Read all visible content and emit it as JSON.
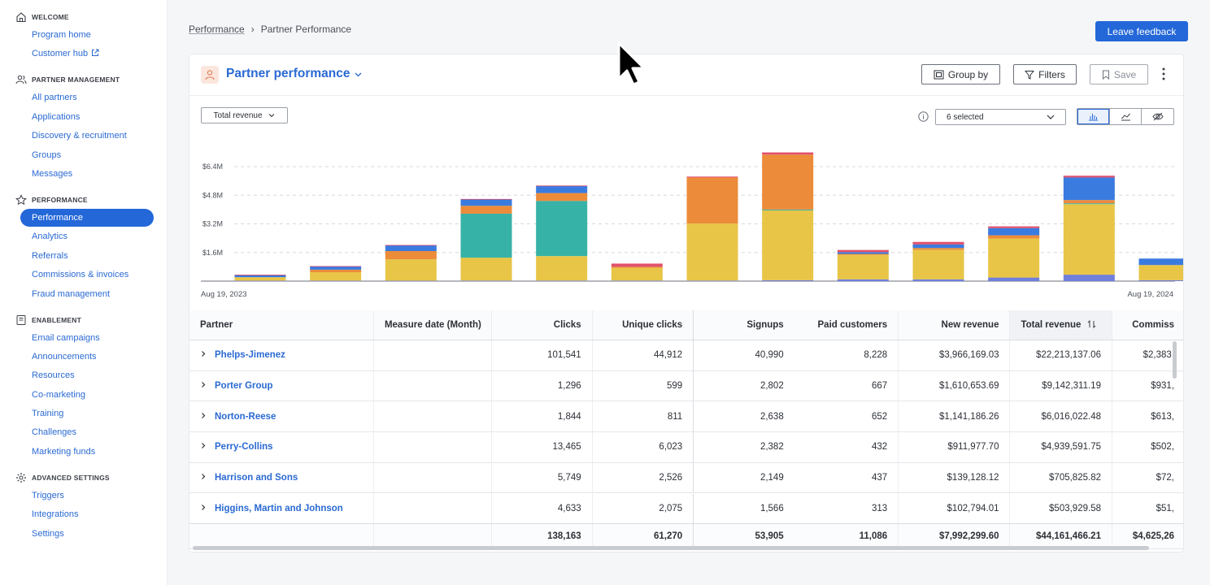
{
  "sidebar": {
    "sections": [
      {
        "title": "WELCOME",
        "icon": "home-icon",
        "items": [
          "Program home",
          "Customer hub"
        ]
      },
      {
        "title": "PARTNER MANAGEMENT",
        "icon": "users-icon",
        "items": [
          "All partners",
          "Applications",
          "Discovery & recruitment",
          "Groups",
          "Messages"
        ]
      },
      {
        "title": "PERFORMANCE",
        "icon": "star-icon",
        "items": [
          "Performance",
          "Analytics",
          "Referrals",
          "Commissions & invoices",
          "Fraud management"
        ]
      },
      {
        "title": "ENABLEMENT",
        "icon": "book-icon",
        "items": [
          "Email campaigns",
          "Announcements",
          "Resources",
          "Co-marketing",
          "Training",
          "Challenges",
          "Marketing funds"
        ]
      },
      {
        "title": "ADVANCED SETTINGS",
        "icon": "gear-icon",
        "items": [
          "Triggers",
          "Integrations",
          "Settings"
        ]
      }
    ],
    "active_item": "Performance"
  },
  "breadcrumb": {
    "root": "Performance",
    "separator": "›",
    "current": "Partner Performance"
  },
  "feedback_button": "Leave feedback",
  "report": {
    "title": "Partner performance",
    "group_by": "Group by",
    "filters": "Filters",
    "save": "Save"
  },
  "chart_controls": {
    "metric": "Total revenue",
    "series_selected": "6 selected"
  },
  "chart_data": {
    "type": "bar",
    "stacked": true,
    "y_ticks": [
      "$1.6M",
      "$3.2M",
      "$4.8M",
      "$6.4M"
    ],
    "y_tick_values": [
      1.6,
      3.2,
      4.8,
      6.4
    ],
    "ylim": [
      0,
      7.1
    ],
    "x_start_label": "Aug 19, 2023",
    "x_end_label": "Aug 19, 2024",
    "colors": [
      "#6f7fdc",
      "#e8c547",
      "#37b2a6",
      "#ec8b3a",
      "#3a7be0",
      "#e0516c"
    ],
    "bars": [
      [
        0.02,
        0.2,
        0.0,
        0.0,
        0.12,
        0.02
      ],
      [
        0.02,
        0.48,
        0.0,
        0.14,
        0.18,
        0.02
      ],
      [
        0.02,
        1.2,
        0.0,
        0.46,
        0.32,
        0.02
      ],
      [
        0.03,
        1.28,
        2.46,
        0.44,
        0.36,
        0.02
      ],
      [
        0.03,
        1.37,
        3.08,
        0.44,
        0.4,
        0.02
      ],
      [
        0.03,
        0.72,
        0.0,
        0.05,
        0.0,
        0.18
      ],
      [
        0.03,
        3.19,
        0.0,
        2.57,
        0.0,
        0.05
      ],
      [
        0.05,
        3.9,
        0.05,
        3.07,
        0.0,
        0.12
      ],
      [
        0.1,
        1.37,
        0.0,
        0.05,
        0.1,
        0.12
      ],
      [
        0.1,
        1.65,
        0.0,
        0.1,
        0.2,
        0.14
      ],
      [
        0.2,
        2.18,
        0.0,
        0.18,
        0.4,
        0.1
      ],
      [
        0.36,
        3.94,
        0.05,
        0.18,
        1.26,
        0.1
      ],
      [
        0.05,
        0.85,
        0.0,
        0.0,
        0.36,
        0.0
      ]
    ]
  },
  "table": {
    "columns": [
      "Partner",
      "Measure date (Month)",
      "Clicks",
      "Unique clicks",
      "Signups",
      "Paid customers",
      "New revenue",
      "Total revenue",
      "Commiss"
    ],
    "rows": [
      {
        "partner": "Phelps-Jimenez",
        "date": "",
        "clicks": "101,541",
        "unique": "44,912",
        "signups": "40,990",
        "paid": "8,228",
        "new_rev": "$3,966,169.03",
        "total_rev": "$22,213,137.06",
        "comm": "$2,383,"
      },
      {
        "partner": "Porter Group",
        "date": "",
        "clicks": "1,296",
        "unique": "599",
        "signups": "2,802",
        "paid": "667",
        "new_rev": "$1,610,653.69",
        "total_rev": "$9,142,311.19",
        "comm": "$931,"
      },
      {
        "partner": "Norton-Reese",
        "date": "",
        "clicks": "1,844",
        "unique": "811",
        "signups": "2,638",
        "paid": "652",
        "new_rev": "$1,141,186.26",
        "total_rev": "$6,016,022.48",
        "comm": "$613,"
      },
      {
        "partner": "Perry-Collins",
        "date": "",
        "clicks": "13,465",
        "unique": "6,023",
        "signups": "2,382",
        "paid": "432",
        "new_rev": "$911,977.70",
        "total_rev": "$4,939,591.75",
        "comm": "$502,"
      },
      {
        "partner": "Harrison and Sons",
        "date": "",
        "clicks": "5,749",
        "unique": "2,526",
        "signups": "2,149",
        "paid": "437",
        "new_rev": "$139,128.12",
        "total_rev": "$705,825.82",
        "comm": "$72,"
      },
      {
        "partner": "Higgins, Martin and Johnson",
        "date": "",
        "clicks": "4,633",
        "unique": "2,075",
        "signups": "1,566",
        "paid": "313",
        "new_rev": "$102,794.01",
        "total_rev": "$503,929.58",
        "comm": "$51,"
      }
    ],
    "totals": {
      "clicks": "138,163",
      "unique": "61,270",
      "signups": "53,905",
      "paid": "11,086",
      "new_rev": "$7,992,299.60",
      "total_rev": "$44,161,466.21",
      "comm": "$4,625,26"
    }
  }
}
